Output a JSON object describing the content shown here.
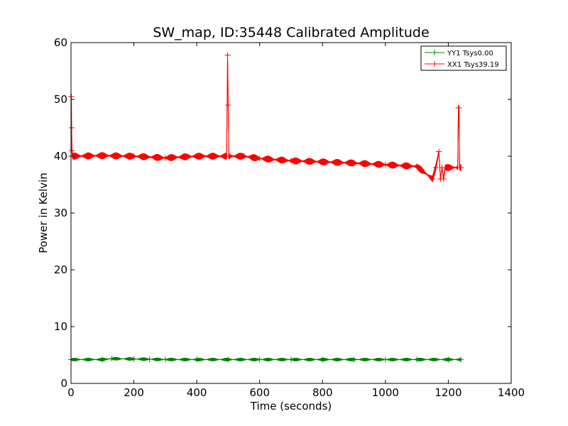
{
  "chart_data": {
    "type": "line",
    "title": "SW_map, ID:35448 Calibrated Amplitude",
    "xlabel": "Time (seconds)",
    "ylabel": "Power in Kelvin",
    "xlim": [
      0,
      1400
    ],
    "ylim": [
      0,
      60
    ],
    "xticks": [
      0,
      200,
      400,
      600,
      800,
      1000,
      1200,
      1400
    ],
    "yticks": [
      0,
      10,
      20,
      30,
      40,
      50,
      60
    ],
    "grid": false,
    "legend_position": "top-right",
    "marker": "+",
    "series": [
      {
        "name": "YY1 Tsys0.00",
        "color": "#008000",
        "amplitude": 0.3,
        "x": [
          0,
          100,
          130,
          200,
          250,
          300,
          400,
          500,
          600,
          700,
          800,
          900,
          1000,
          1100,
          1200,
          1240
        ],
        "y": [
          4.2,
          4.2,
          4.35,
          4.3,
          4.25,
          4.2,
          4.2,
          4.2,
          4.2,
          4.2,
          4.2,
          4.2,
          4.2,
          4.2,
          4.2,
          4.2
        ]
      },
      {
        "name": "XX1 Tsys39.19",
        "color": "#ff0000",
        "amplitude": 0.6,
        "x": [
          0,
          0.5,
          1,
          2,
          3,
          5,
          100,
          200,
          300,
          400,
          495,
          498,
          500,
          502,
          505,
          550,
          600,
          700,
          800,
          900,
          1000,
          1100,
          1150,
          1160,
          1170,
          1175,
          1180,
          1185,
          1190,
          1195,
          1200,
          1230,
          1232,
          1234,
          1236,
          1240
        ],
        "y": [
          40,
          50.5,
          50.5,
          45,
          41,
          40,
          40.1,
          40,
          39.7,
          40,
          40,
          57.8,
          49,
          40,
          40,
          40,
          39.6,
          39.2,
          39,
          38.8,
          38.5,
          38.2,
          36,
          38,
          40.8,
          36,
          38,
          36,
          38,
          38,
          38,
          38,
          48.5,
          48.5,
          38,
          38
        ]
      }
    ]
  }
}
